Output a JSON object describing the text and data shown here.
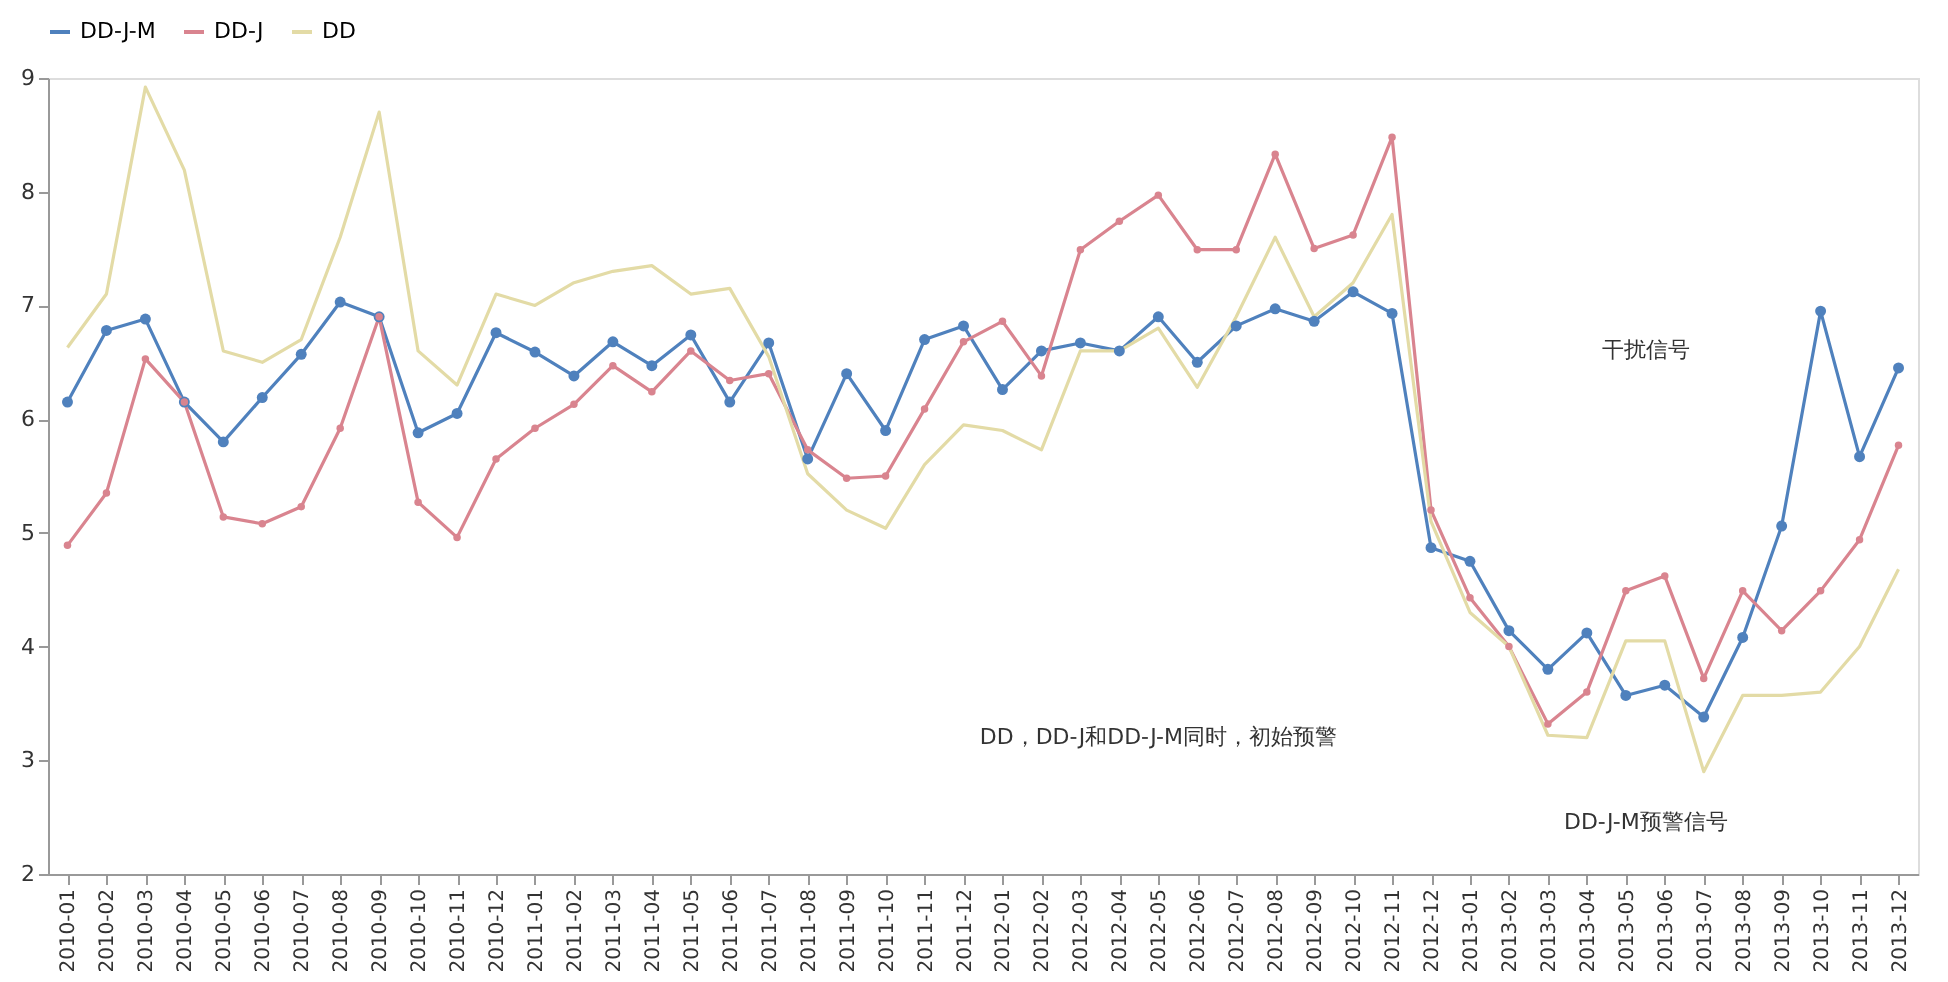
{
  "chart_data": {
    "type": "line",
    "categories": [
      "2010-01",
      "2010-02",
      "2010-03",
      "2010-04",
      "2010-05",
      "2010-06",
      "2010-07",
      "2010-08",
      "2010-09",
      "2010-10",
      "2010-11",
      "2010-12",
      "2011-01",
      "2011-02",
      "2011-03",
      "2011-04",
      "2011-05",
      "2011-06",
      "2011-07",
      "2011-08",
      "2011-09",
      "2011-10",
      "2011-11",
      "2011-12",
      "2012-01",
      "2012-02",
      "2012-03",
      "2012-04",
      "2012-05",
      "2012-06",
      "2012-07",
      "2012-08",
      "2012-09",
      "2012-10",
      "2012-11",
      "2012-12",
      "2013-01",
      "2013-02",
      "2013-03",
      "2013-04",
      "2013-05",
      "2013-06",
      "2013-07",
      "2013-08",
      "2013-09",
      "2013-10",
      "2013-11",
      "2013-12"
    ],
    "series": [
      {
        "name": "DD-J-M",
        "color": "#4f81bd",
        "marker": "circle",
        "values": [
          6.15,
          6.78,
          6.88,
          6.15,
          5.8,
          6.19,
          6.57,
          7.03,
          6.9,
          5.88,
          6.05,
          6.76,
          6.59,
          6.38,
          6.68,
          6.47,
          6.74,
          6.15,
          6.67,
          5.65,
          6.4,
          5.9,
          6.7,
          6.82,
          6.26,
          6.6,
          6.67,
          6.6,
          6.9,
          6.5,
          6.82,
          6.97,
          6.86,
          7.12,
          6.93,
          4.87,
          4.75,
          4.14,
          3.8,
          4.12,
          3.57,
          3.66,
          3.38,
          4.08,
          5.06,
          6.95,
          5.67,
          6.45
        ]
      },
      {
        "name": "DD-J",
        "color": "#d9848f",
        "marker": "circle",
        "values": [
          4.89,
          5.35,
          6.53,
          6.15,
          5.14,
          5.08,
          5.23,
          5.92,
          6.9,
          5.27,
          4.96,
          5.65,
          5.92,
          6.13,
          6.47,
          6.24,
          6.6,
          6.34,
          6.4,
          5.73,
          5.48,
          5.5,
          6.09,
          6.68,
          6.86,
          6.38,
          7.49,
          7.74,
          7.97,
          7.49,
          7.49,
          8.33,
          7.5,
          7.62,
          8.48,
          5.2,
          4.43,
          4.0,
          3.32,
          3.6,
          4.49,
          4.62,
          3.72,
          4.49,
          4.14,
          4.49,
          4.94,
          5.77
        ]
      },
      {
        "name": "DD",
        "color": "#e3dba6",
        "marker": "none",
        "values": [
          6.63,
          7.1,
          8.92,
          8.19,
          6.6,
          6.5,
          6.7,
          7.6,
          8.7,
          6.6,
          6.3,
          7.1,
          7.0,
          7.2,
          7.3,
          7.35,
          7.1,
          7.15,
          6.55,
          5.52,
          5.2,
          5.04,
          5.6,
          5.95,
          5.9,
          5.73,
          6.6,
          6.6,
          6.8,
          6.28,
          6.9,
          7.6,
          6.9,
          7.2,
          7.8,
          5.1,
          4.3,
          4.0,
          3.22,
          3.2,
          4.05,
          4.05,
          2.9,
          3.57,
          3.57,
          3.6,
          4.0,
          4.68
        ]
      }
    ],
    "ylim": [
      2,
      9
    ],
    "yticks": [
      2,
      3,
      4,
      5,
      6,
      7,
      8,
      9
    ],
    "grid": false,
    "legend": "top",
    "line_style": "solid",
    "annotations": [
      "DD，DD-J和DD-J-M同时，初始预警",
      "干扰信号",
      "DD-J-M预警信号"
    ]
  }
}
